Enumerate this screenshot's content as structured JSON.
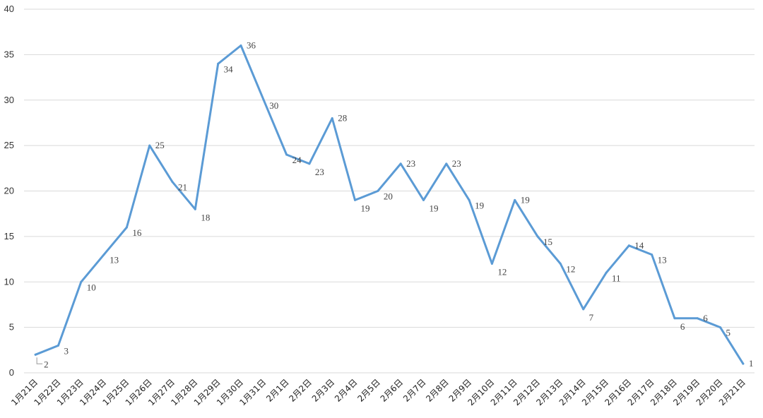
{
  "chart_data": {
    "type": "line",
    "categories": [
      "1月21日",
      "1月22日",
      "1月23日",
      "1月24日",
      "1月25日",
      "1月26日",
      "1月27日",
      "1月28日",
      "1月29日",
      "1月30日",
      "1月31日",
      "2月1日",
      "2月2日",
      "2月3日",
      "2月4日",
      "2月5日",
      "2月6日",
      "2月7日",
      "2月8日",
      "2月9日",
      "2月10日",
      "2月11日",
      "2月12日",
      "2月13日",
      "2月14日",
      "2月15日",
      "2月16日",
      "2月17日",
      "2月18日",
      "2月19日",
      "2月20日",
      "2月21日"
    ],
    "series": [
      {
        "values": [
          2,
          3,
          10,
          13,
          16,
          25,
          21,
          18,
          34,
          36,
          30,
          24,
          23,
          28,
          19,
          20,
          23,
          19,
          23,
          19,
          12,
          19,
          15,
          12,
          7,
          11,
          14,
          13,
          6,
          6,
          5,
          1
        ]
      }
    ],
    "ylim": [
      0,
      40
    ],
    "yticks": [
      0,
      5,
      10,
      15,
      20,
      25,
      30,
      35,
      40
    ],
    "grid": true,
    "legend": "none",
    "title": "",
    "xlabel": "",
    "ylabel": "",
    "line_color": "#5b9bd5"
  }
}
